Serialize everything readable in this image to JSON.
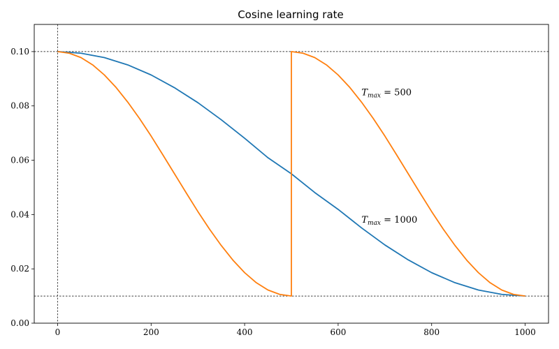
{
  "chart_data": {
    "type": "line",
    "title": "Cosine learning rate",
    "xlabel": "",
    "ylabel": "",
    "xlim": [
      -50,
      1050
    ],
    "ylim": [
      0.0,
      0.11
    ],
    "x_ticks": [
      0,
      200,
      400,
      600,
      800,
      1000
    ],
    "x_tick_labels": [
      "0",
      "200",
      "400",
      "600",
      "800",
      "1000"
    ],
    "y_ticks": [
      0.0,
      0.02,
      0.04,
      0.06,
      0.08,
      0.1
    ],
    "y_tick_labels": [
      "0.00",
      "0.02",
      "0.04",
      "0.06",
      "0.08",
      "0.10"
    ],
    "grid": false,
    "legend": "none",
    "reference_lines": {
      "horizontal": [
        0.1,
        0.01
      ],
      "vertical": [
        0
      ],
      "style": "dashed",
      "color": "#000000"
    },
    "series": [
      {
        "color": "#1f77b4",
        "x": [
          0,
          50,
          100,
          150,
          200,
          250,
          300,
          350,
          400,
          450,
          500,
          550,
          600,
          650,
          700,
          750,
          800,
          850,
          900,
          950,
          1000
        ],
        "y": [
          0.1,
          0.0994,
          0.0978,
          0.0951,
          0.0914,
          0.0867,
          0.0812,
          0.0749,
          0.0681,
          0.0609,
          0.055,
          0.0481,
          0.0419,
          0.0351,
          0.0288,
          0.0233,
          0.0186,
          0.0149,
          0.0122,
          0.0106,
          0.01
        ]
      },
      {
        "color": "#ff7f0e",
        "x": [
          0,
          25,
          50,
          75,
          100,
          125,
          150,
          175,
          200,
          225,
          250,
          275,
          300,
          325,
          350,
          375,
          400,
          425,
          450,
          475,
          500,
          500,
          525,
          550,
          575,
          600,
          625,
          650,
          675,
          700,
          725,
          750,
          775,
          800,
          825,
          850,
          875,
          900,
          925,
          950,
          975,
          1000
        ],
        "y": [
          0.1,
          0.0994,
          0.0978,
          0.0951,
          0.0914,
          0.0868,
          0.0814,
          0.0754,
          0.0689,
          0.062,
          0.055,
          0.048,
          0.0411,
          0.0346,
          0.0286,
          0.0232,
          0.0186,
          0.0149,
          0.0122,
          0.0106,
          0.01,
          0.1,
          0.0994,
          0.0978,
          0.0951,
          0.0914,
          0.0868,
          0.0814,
          0.0754,
          0.0689,
          0.062,
          0.055,
          0.048,
          0.0411,
          0.0346,
          0.0286,
          0.0232,
          0.0186,
          0.0149,
          0.0122,
          0.0106,
          0.01
        ]
      }
    ],
    "annotations": [
      {
        "italic": "T",
        "sub": "max",
        "text": " = 500",
        "x": 650,
        "y": 0.085
      },
      {
        "italic": "T",
        "sub": "max",
        "text": " = 1000",
        "x": 650,
        "y": 0.038
      }
    ]
  }
}
